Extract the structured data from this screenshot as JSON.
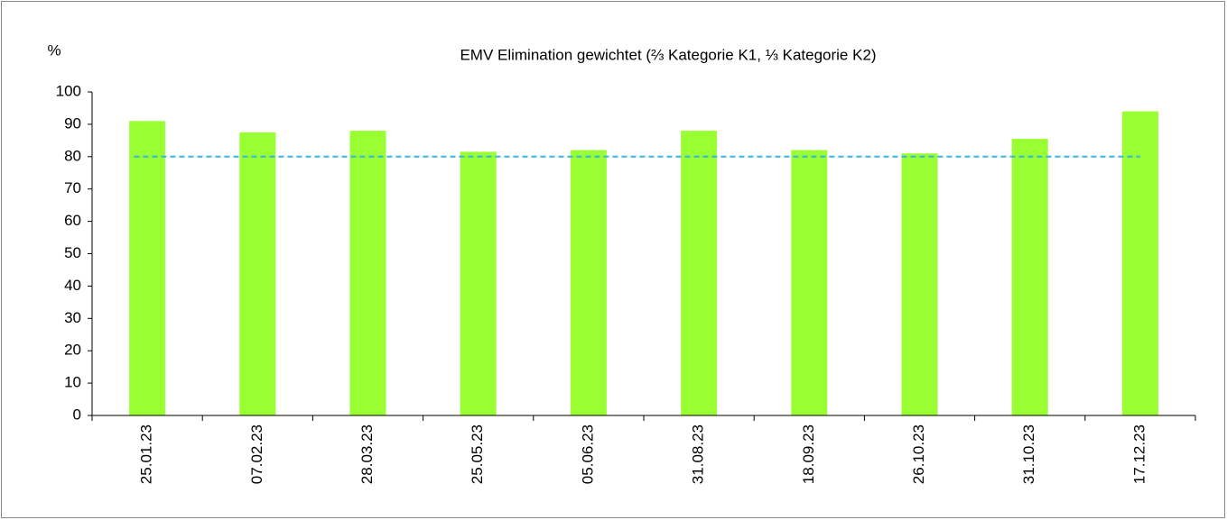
{
  "chart_data": {
    "type": "bar",
    "title": "EMV Elimination gewichtet (⅔ Kategorie K1, ⅓ Kategorie K2)",
    "y_label": "%",
    "categories": [
      "25.01.23",
      "07.02.23",
      "28.03.23",
      "25.05.23",
      "05.06.23",
      "31.08.23",
      "18.09.23",
      "26.10.23",
      "31.10.23",
      "17.12.23"
    ],
    "values": [
      91,
      87.5,
      88,
      81.5,
      82,
      88,
      82,
      81,
      85.5,
      94
    ],
    "color": "#99ff33",
    "reference_line": {
      "value": 80,
      "color": "#33b5e5",
      "dashed": true
    },
    "ylim": [
      0,
      100
    ],
    "yticks": [
      0,
      10,
      20,
      30,
      40,
      50,
      60,
      70,
      80,
      90,
      100
    ],
    "grid": false
  }
}
